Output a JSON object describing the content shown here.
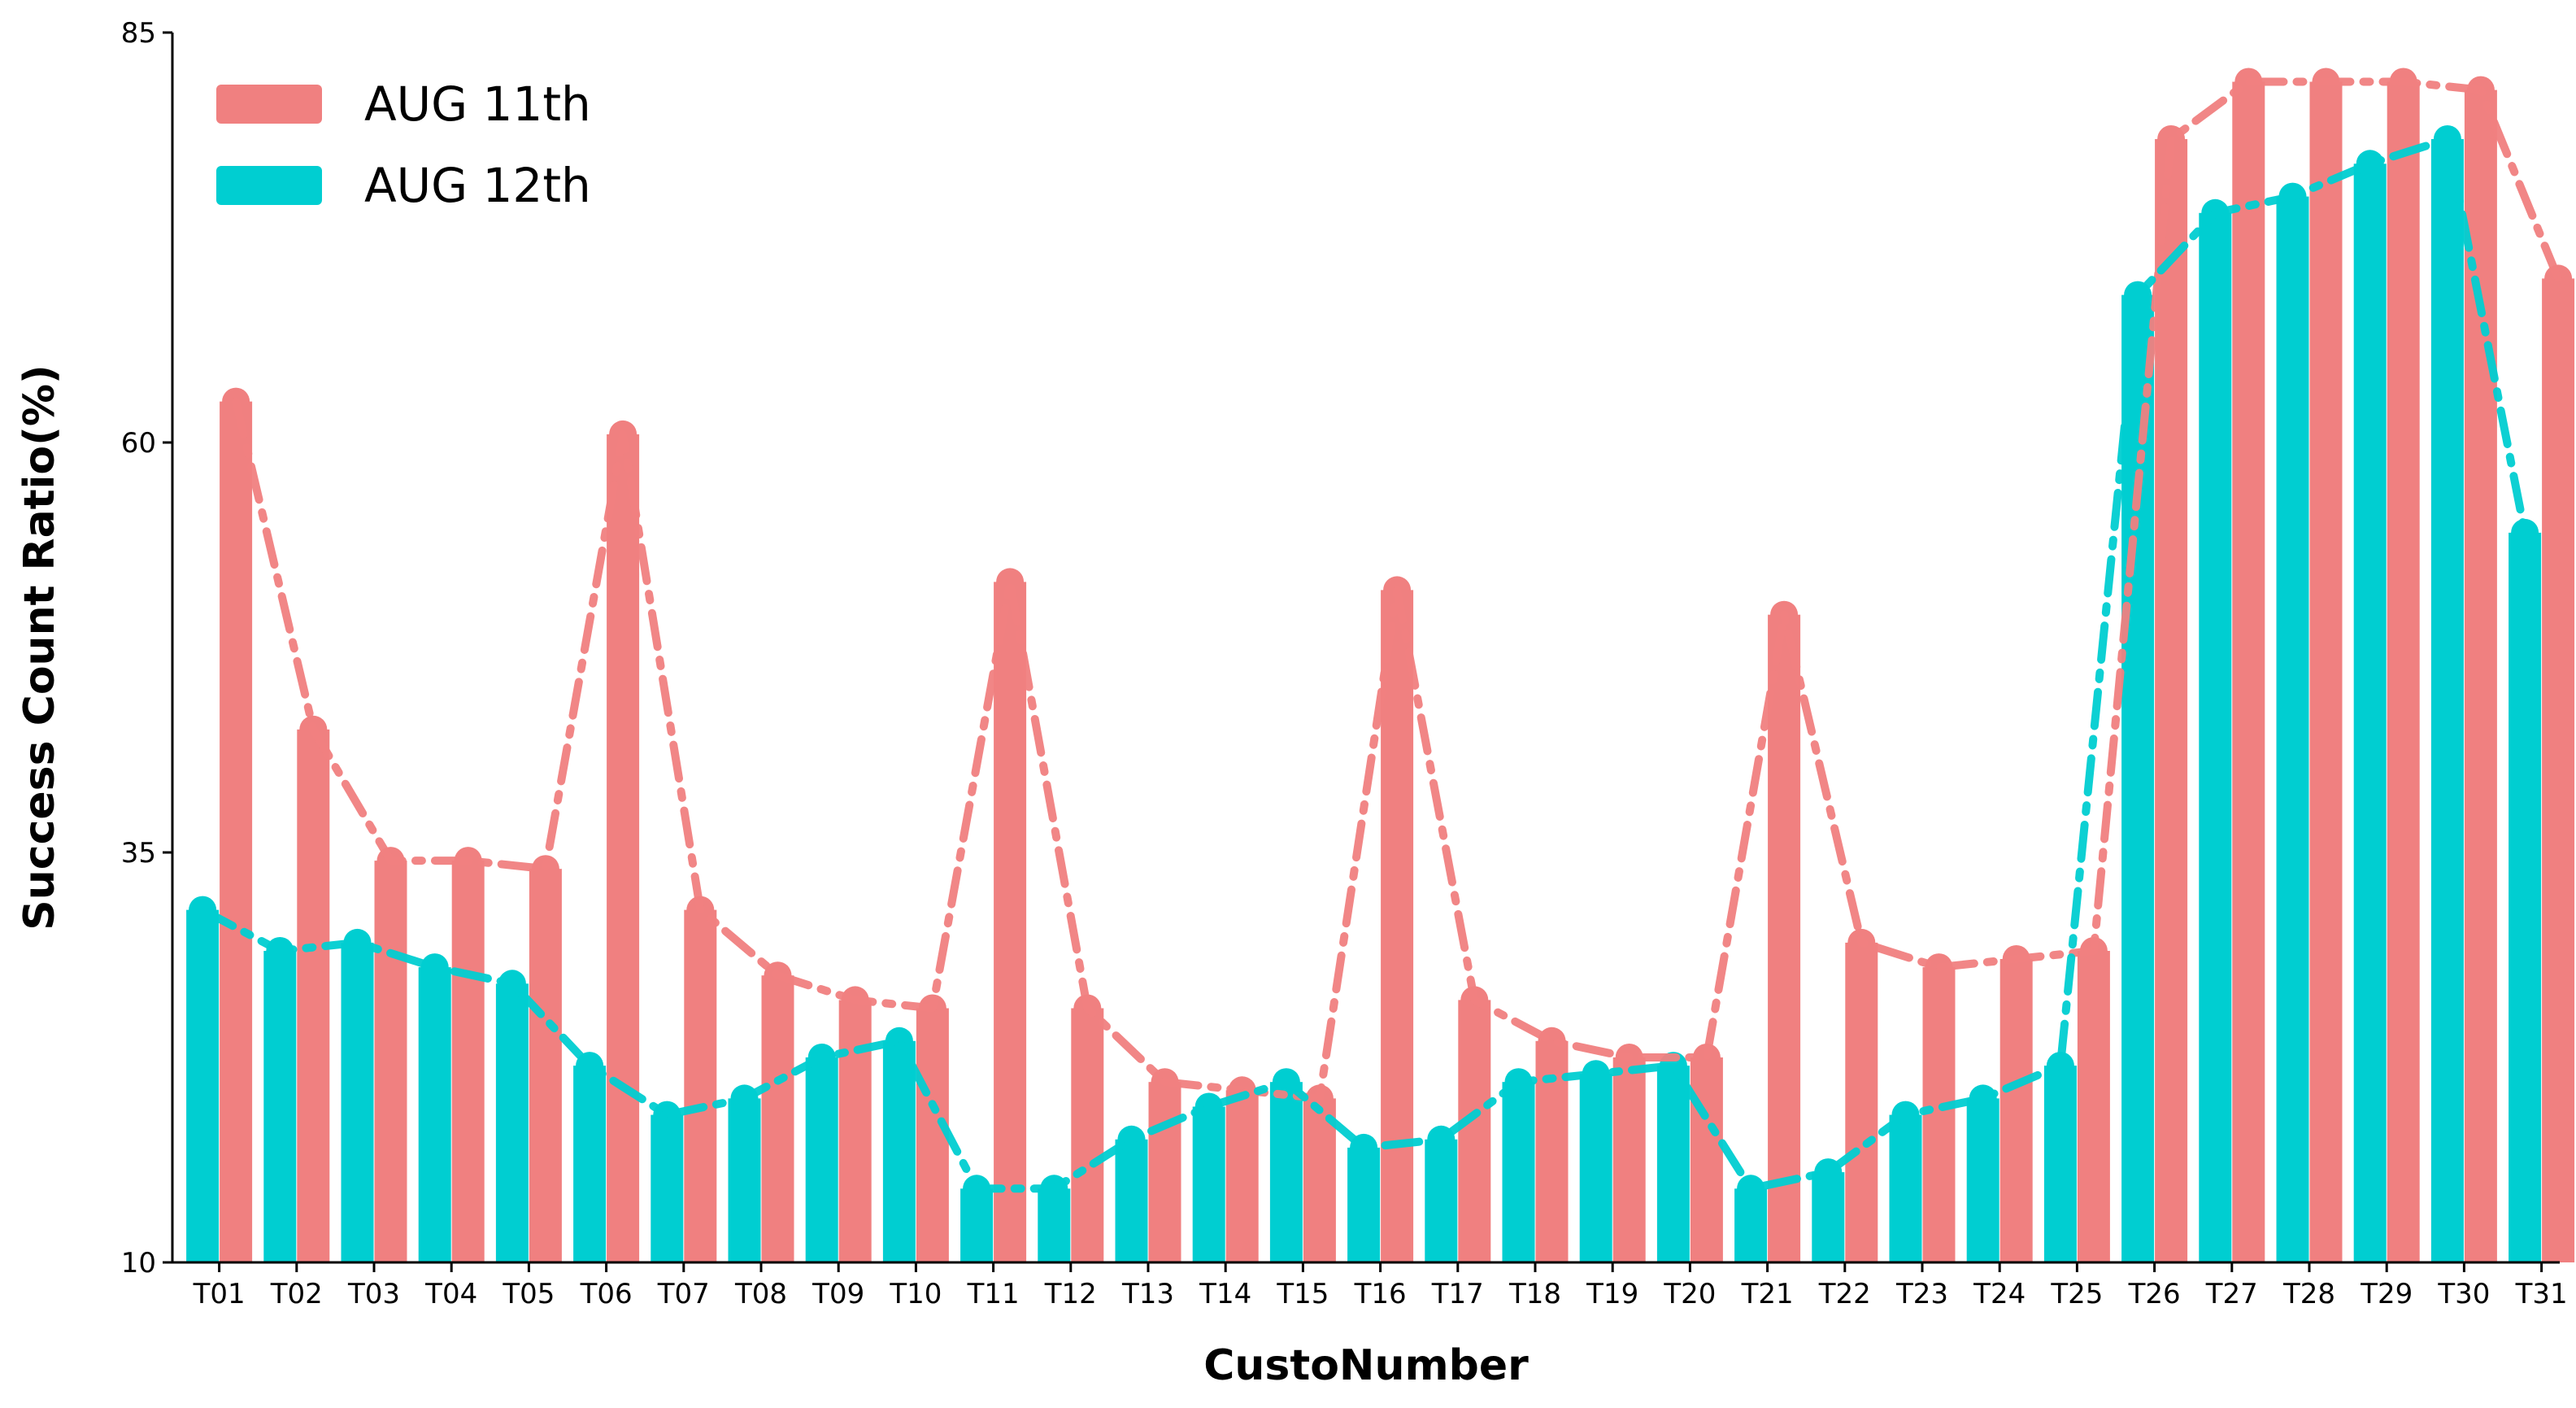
{
  "chart_data": {
    "type": "bar",
    "xlabel": "CustoNumber",
    "ylabel": "Success Count Ratio(%)",
    "ylim": [
      10,
      85
    ],
    "yticks": [
      10,
      35,
      60,
      85
    ],
    "categories": [
      "T01",
      "T02",
      "T03",
      "T04",
      "T05",
      "T06",
      "T07",
      "T08",
      "T09",
      "T10",
      "T11",
      "T12",
      "T13",
      "T14",
      "T15",
      "T16",
      "T17",
      "T18",
      "T19",
      "T20",
      "T21",
      "T22",
      "T23",
      "T24",
      "T25",
      "T26",
      "T27",
      "T28",
      "T29",
      "T30",
      "T31"
    ],
    "series": [
      {
        "name": "AUG 11th",
        "color": "#F08080",
        "values": [
          62.5,
          42.5,
          34.5,
          34.5,
          34,
          60.5,
          31.5,
          27.5,
          26,
          25.5,
          51.5,
          25.5,
          21,
          20.5,
          20,
          51,
          26,
          23.5,
          22.5,
          22.5,
          49.5,
          29.5,
          28,
          28.5,
          29,
          78.5,
          82,
          82,
          82,
          81.5,
          70
        ]
      },
      {
        "name": "AUG 12th",
        "color": "#00CED1",
        "values": [
          31.5,
          29,
          29.5,
          28,
          27,
          22,
          19,
          20,
          22.5,
          23.5,
          14.5,
          14.5,
          17.5,
          19.5,
          21,
          17,
          17.5,
          21,
          21.5,
          22,
          14.5,
          15.5,
          19,
          20,
          22,
          69,
          74,
          75,
          77,
          78.5,
          54.5
        ]
      }
    ],
    "legend_position": "top-left",
    "grid": false
  }
}
